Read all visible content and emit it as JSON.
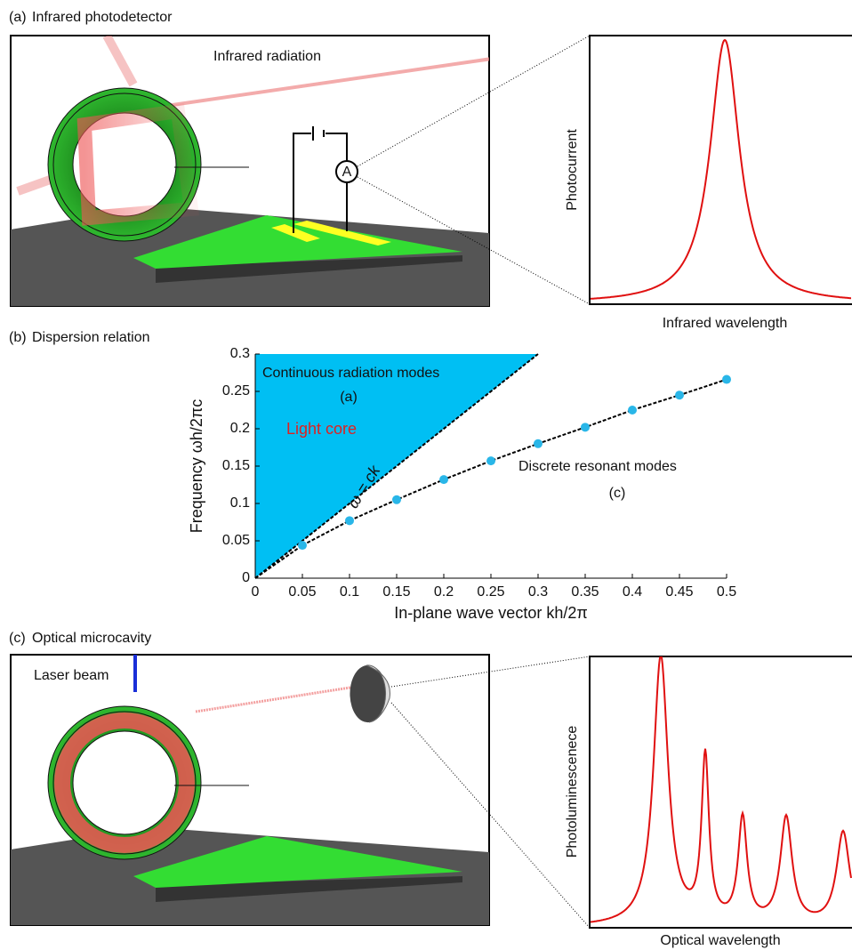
{
  "panel_a": {
    "label": "(a)",
    "title": "Infrared photodetector",
    "beam_label": "Infrared radiation",
    "meter_label": "A",
    "plot_ylabel": "Photocurrent",
    "plot_xlabel": "Infrared wavelength"
  },
  "chart_data": {
    "type": "scatter",
    "label": "(b)",
    "title": "Dispersion relation",
    "xlabel": "In-plane wave vector kh/2π",
    "ylabel": "Frequency ωh/2πc",
    "xlim": [
      0,
      0.5
    ],
    "ylim": [
      0,
      0.3
    ],
    "xticks": [
      0,
      0.05,
      0.1,
      0.15,
      0.2,
      0.25,
      0.3,
      0.35,
      0.4,
      0.45,
      0.5
    ],
    "yticks": [
      0,
      0.05,
      0.1,
      0.15,
      0.2,
      0.25,
      0.3
    ],
    "region_label": "Continuous radiation modes",
    "region_ref": "(a)",
    "core_label": "Light core",
    "light_line_label": "ω = ck",
    "modes_label": "Discrete resonant modes",
    "modes_ref": "(c)",
    "fill_color": "#00bff3",
    "light_line": {
      "x": [
        0,
        0.3
      ],
      "y": [
        0,
        0.3
      ]
    },
    "x": [
      0.05,
      0.1,
      0.15,
      0.2,
      0.25,
      0.3,
      0.35,
      0.4,
      0.45,
      0.5
    ],
    "values": [
      0.044,
      0.077,
      0.105,
      0.132,
      0.157,
      0.18,
      0.202,
      0.225,
      0.245,
      0.266
    ],
    "color": "#29b6e8"
  },
  "panel_c": {
    "label": "(c)",
    "title": "Optical microcavity",
    "beam_label": "Laser beam",
    "plot_ylabel": "Photoluminescenece",
    "plot_xlabel": "Optical wavelength"
  }
}
